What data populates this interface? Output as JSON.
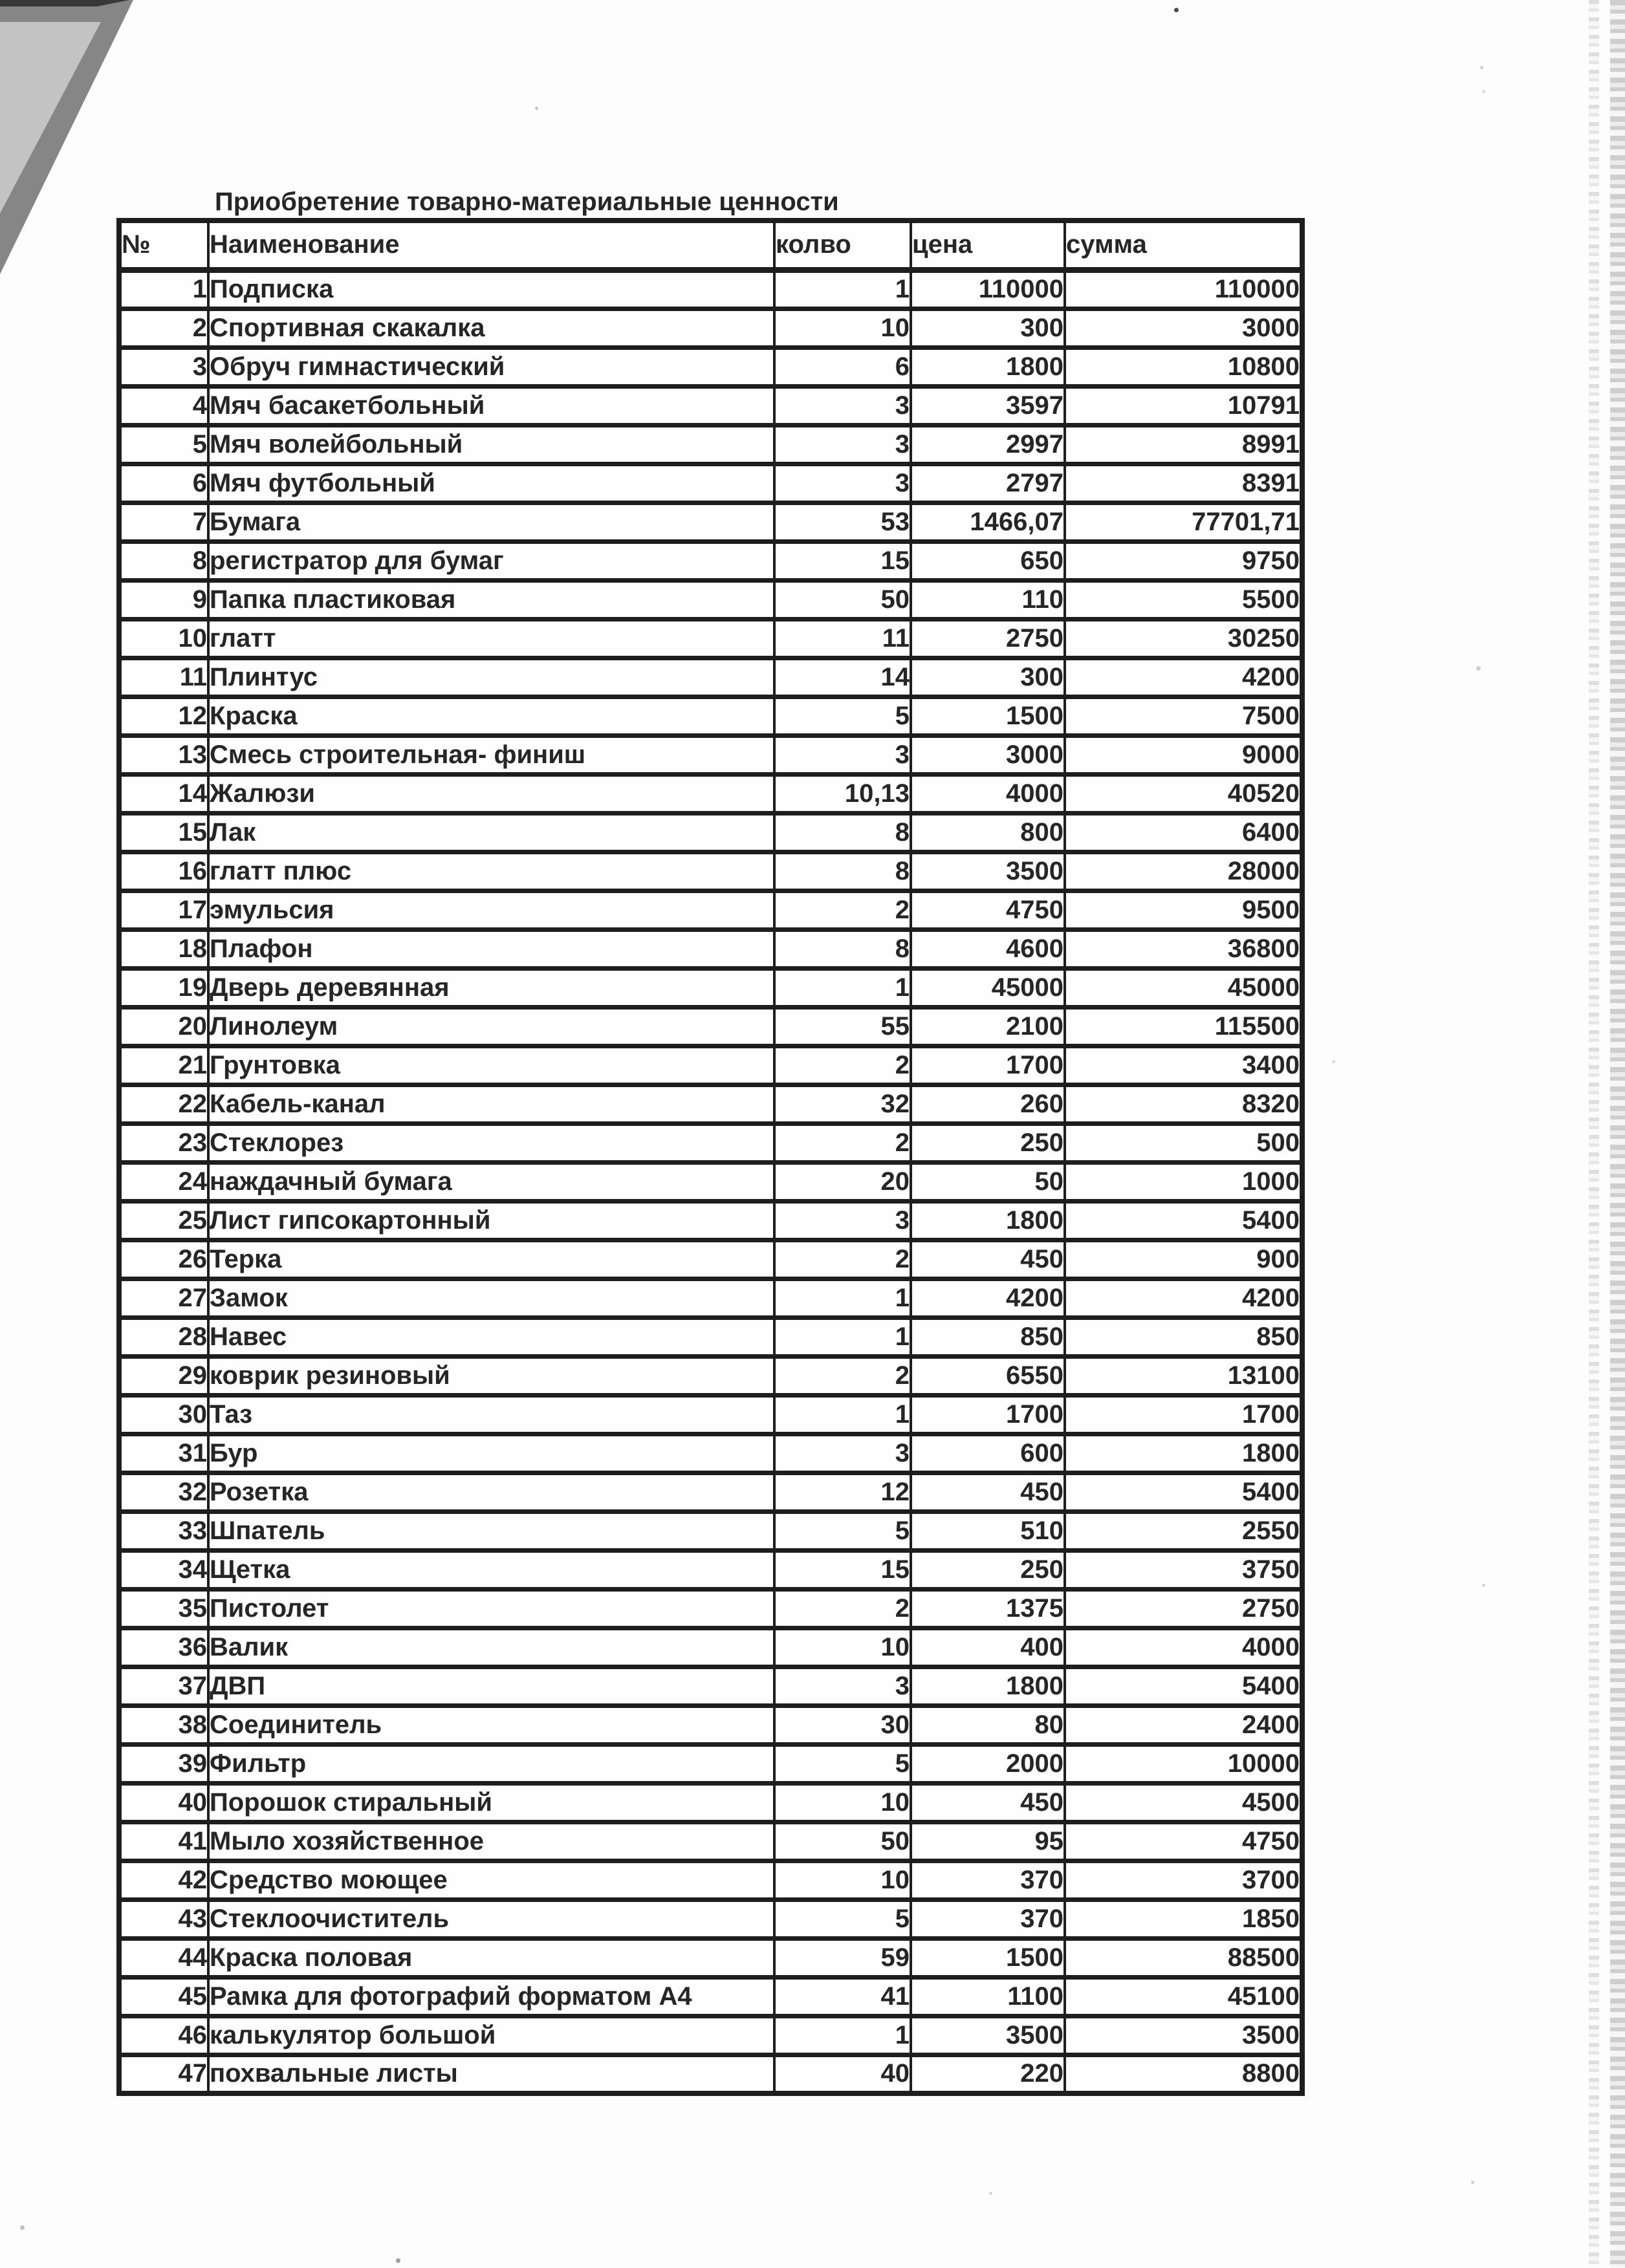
{
  "page": {
    "title": "Приобретение товарно-материальные ценности"
  },
  "table": {
    "columns": [
      {
        "key": "num",
        "label": "№"
      },
      {
        "key": "name",
        "label": "Наименование"
      },
      {
        "key": "qty",
        "label": "колво"
      },
      {
        "key": "price",
        "label": "цена"
      },
      {
        "key": "sum",
        "label": "сумма"
      }
    ],
    "rows": [
      {
        "num": "1",
        "name": "Подписка",
        "qty": "1",
        "price": "110000",
        "sum": "110000"
      },
      {
        "num": "2",
        "name": "Спортивная скакалка",
        "qty": "10",
        "price": "300",
        "sum": "3000"
      },
      {
        "num": "3",
        "name": "Обруч гимнастический",
        "qty": "6",
        "price": "1800",
        "sum": "10800"
      },
      {
        "num": "4",
        "name": "Мяч басакетбольный",
        "qty": "3",
        "price": "3597",
        "sum": "10791"
      },
      {
        "num": "5",
        "name": "Мяч волейбольный",
        "qty": "3",
        "price": "2997",
        "sum": "8991"
      },
      {
        "num": "6",
        "name": "Мяч футбольный",
        "qty": "3",
        "price": "2797",
        "sum": "8391"
      },
      {
        "num": "7",
        "name": "Бумага",
        "qty": "53",
        "price": "1466,07",
        "sum": "77701,71"
      },
      {
        "num": "8",
        "name": "регистратор для бумаг",
        "qty": "15",
        "price": "650",
        "sum": "9750"
      },
      {
        "num": "9",
        "name": "Папка пластиковая",
        "qty": "50",
        "price": "110",
        "sum": "5500"
      },
      {
        "num": "10",
        "name": "глатт",
        "qty": "11",
        "price": "2750",
        "sum": "30250"
      },
      {
        "num": "11",
        "name": "Плинтус",
        "qty": "14",
        "price": "300",
        "sum": "4200"
      },
      {
        "num": "12",
        "name": "Краска",
        "qty": "5",
        "price": "1500",
        "sum": "7500"
      },
      {
        "num": "13",
        "name": "Смесь строительная- финиш",
        "qty": "3",
        "price": "3000",
        "sum": "9000"
      },
      {
        "num": "14",
        "name": "Жалюзи",
        "qty": "10,13",
        "price": "4000",
        "sum": "40520"
      },
      {
        "num": "15",
        "name": "Лак",
        "qty": "8",
        "price": "800",
        "sum": "6400"
      },
      {
        "num": "16",
        "name": "глатт плюс",
        "qty": "8",
        "price": "3500",
        "sum": "28000"
      },
      {
        "num": "17",
        "name": "эмульсия",
        "qty": "2",
        "price": "4750",
        "sum": "9500"
      },
      {
        "num": "18",
        "name": "Плафон",
        "qty": "8",
        "price": "4600",
        "sum": "36800"
      },
      {
        "num": "19",
        "name": "Дверь деревянная",
        "qty": "1",
        "price": "45000",
        "sum": "45000"
      },
      {
        "num": "20",
        "name": "Линолеум",
        "qty": "55",
        "price": "2100",
        "sum": "115500"
      },
      {
        "num": "21",
        "name": "Грунтовка",
        "qty": "2",
        "price": "1700",
        "sum": "3400"
      },
      {
        "num": "22",
        "name": "Кабель-канал",
        "qty": "32",
        "price": "260",
        "sum": "8320"
      },
      {
        "num": "23",
        "name": "Стеклорез",
        "qty": "2",
        "price": "250",
        "sum": "500"
      },
      {
        "num": "24",
        "name": "наждачный бумага",
        "qty": "20",
        "price": "50",
        "sum": "1000"
      },
      {
        "num": "25",
        "name": "Лист гипсокартонный",
        "qty": "3",
        "price": "1800",
        "sum": "5400"
      },
      {
        "num": "26",
        "name": "Терка",
        "qty": "2",
        "price": "450",
        "sum": "900"
      },
      {
        "num": "27",
        "name": "Замок",
        "qty": "1",
        "price": "4200",
        "sum": "4200"
      },
      {
        "num": "28",
        "name": "Навес",
        "qty": "1",
        "price": "850",
        "sum": "850"
      },
      {
        "num": "29",
        "name": "коврик резиновый",
        "qty": "2",
        "price": "6550",
        "sum": "13100"
      },
      {
        "num": "30",
        "name": "Таз",
        "qty": "1",
        "price": "1700",
        "sum": "1700"
      },
      {
        "num": "31",
        "name": "Бур",
        "qty": "3",
        "price": "600",
        "sum": "1800"
      },
      {
        "num": "32",
        "name": "Розетка",
        "qty": "12",
        "price": "450",
        "sum": "5400"
      },
      {
        "num": "33",
        "name": "Шпатель",
        "qty": "5",
        "price": "510",
        "sum": "2550"
      },
      {
        "num": "34",
        "name": "Щетка",
        "qty": "15",
        "price": "250",
        "sum": "3750"
      },
      {
        "num": "35",
        "name": "Пистолет",
        "qty": "2",
        "price": "1375",
        "sum": "2750"
      },
      {
        "num": "36",
        "name": "Валик",
        "qty": "10",
        "price": "400",
        "sum": "4000"
      },
      {
        "num": "37",
        "name": "ДВП",
        "qty": "3",
        "price": "1800",
        "sum": "5400"
      },
      {
        "num": "38",
        "name": "Соединитель",
        "qty": "30",
        "price": "80",
        "sum": "2400"
      },
      {
        "num": "39",
        "name": "Фильтр",
        "qty": "5",
        "price": "2000",
        "sum": "10000"
      },
      {
        "num": "40",
        "name": "Порошок стиральный",
        "qty": "10",
        "price": "450",
        "sum": "4500"
      },
      {
        "num": "41",
        "name": "Мыло хозяйственное",
        "qty": "50",
        "price": "95",
        "sum": "4750"
      },
      {
        "num": "42",
        "name": "Средство моющее",
        "qty": "10",
        "price": "370",
        "sum": "3700"
      },
      {
        "num": "43",
        "name": "Стеклоочиститель",
        "qty": "5",
        "price": "370",
        "sum": "1850"
      },
      {
        "num": "44",
        "name": "Краска половая",
        "qty": "59",
        "price": "1500",
        "sum": "88500"
      },
      {
        "num": "45",
        "name": "Рамка для фотографий форматом А4",
        "qty": "41",
        "price": "1100",
        "sum": "45100"
      },
      {
        "num": "46",
        "name": "калькулятор большой",
        "qty": "1",
        "price": "3500",
        "sum": "3500"
      },
      {
        "num": "47",
        "name": "похвальные листы",
        "qty": "40",
        "price": "220",
        "sum": "8800"
      }
    ]
  },
  "colors": {
    "paper": "#fdfdfd",
    "ink": "#262626",
    "border": "#1e1e1e",
    "fold_outer": "#868686",
    "fold_inner": "#c3c3c3"
  }
}
